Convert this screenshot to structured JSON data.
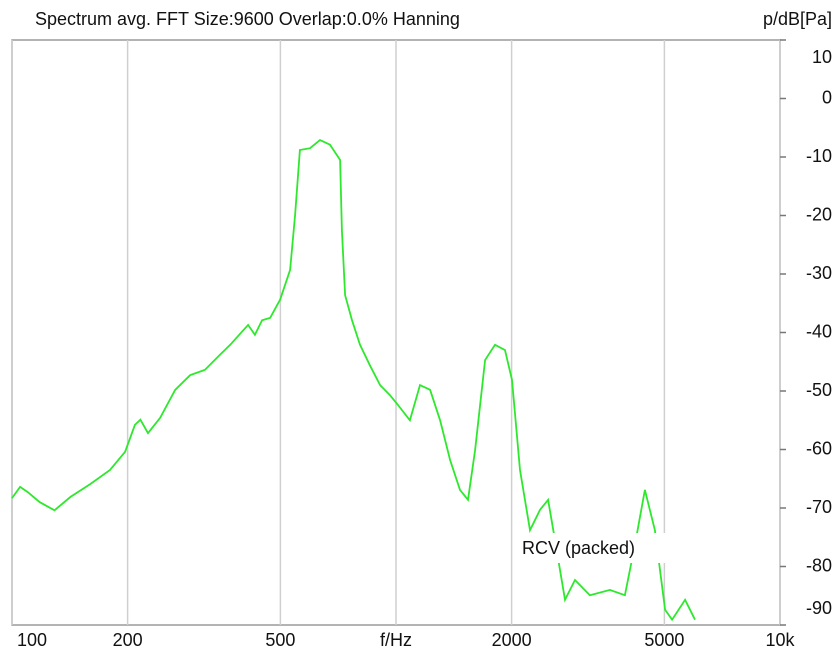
{
  "chart_data": {
    "type": "line",
    "title": "Spectrum avg.  FFT Size:9600  Overlap:0.0%  Hanning",
    "y_label": "p/dB[Pa]",
    "annotation": "RCV (packed)",
    "x_scale": "log",
    "grid": true,
    "xlim": [
      100,
      10000
    ],
    "xticks": [
      100,
      200,
      500,
      {
        "value": 1000,
        "label": "f/Hz"
      },
      2000,
      5000,
      {
        "value": 10000,
        "label": "10k"
      }
    ],
    "ylim": [
      -90,
      10
    ],
    "yticks": [
      10,
      0,
      -10,
      -20,
      -30,
      -40,
      -50,
      -60,
      -70,
      -80,
      -90
    ],
    "x": [
      100,
      105,
      110,
      118,
      129,
      142,
      160,
      180,
      197,
      209,
      216,
      226,
      243,
      266,
      291,
      318,
      348,
      370,
      412,
      429,
      448,
      470,
      499,
      530,
      546,
      562,
      597,
      634,
      673,
      715,
      723,
      737,
      768,
      806,
      855,
      909,
      964,
      1012,
      1087,
      1155,
      1227,
      1303,
      1383,
      1468,
      1540,
      1607,
      1706,
      1811,
      1923,
      2005,
      2104,
      2234,
      2371,
      2489,
      2595,
      2755,
      2925,
      3199,
      3607,
      3946,
      4190,
      4449,
      4724,
      5020,
      5236,
      5662,
      6006
    ],
    "series": [
      {
        "name": "RCV (packed)",
        "color": "#2ee82e",
        "values": [
          -68.3,
          -66.4,
          -67.3,
          -69.0,
          -70.4,
          -68.1,
          -65.9,
          -63.5,
          -60.4,
          -55.8,
          -54.9,
          -57.2,
          -54.6,
          -49.8,
          -47.3,
          -46.4,
          -43.8,
          -42.1,
          -38.7,
          -40.4,
          -37.9,
          -37.5,
          -34.4,
          -29.3,
          -19.9,
          -8.8,
          -8.5,
          -7.1,
          -7.9,
          -10.5,
          -22.5,
          -33.6,
          -37.9,
          -42.1,
          -45.6,
          -49.0,
          -50.7,
          -52.4,
          -55.0,
          -49.0,
          -49.8,
          -55.0,
          -61.8,
          -66.9,
          -68.6,
          -60.1,
          -44.7,
          -42.1,
          -43.0,
          -48.1,
          -63.5,
          -73.8,
          -70.3,
          -68.6,
          -75.5,
          -85.7,
          -82.3,
          -84.9,
          -84.0,
          -84.9,
          -76.3,
          -66.9,
          -73.8,
          -87.4,
          -89.1,
          -85.7,
          -89.1
        ]
      }
    ]
  }
}
